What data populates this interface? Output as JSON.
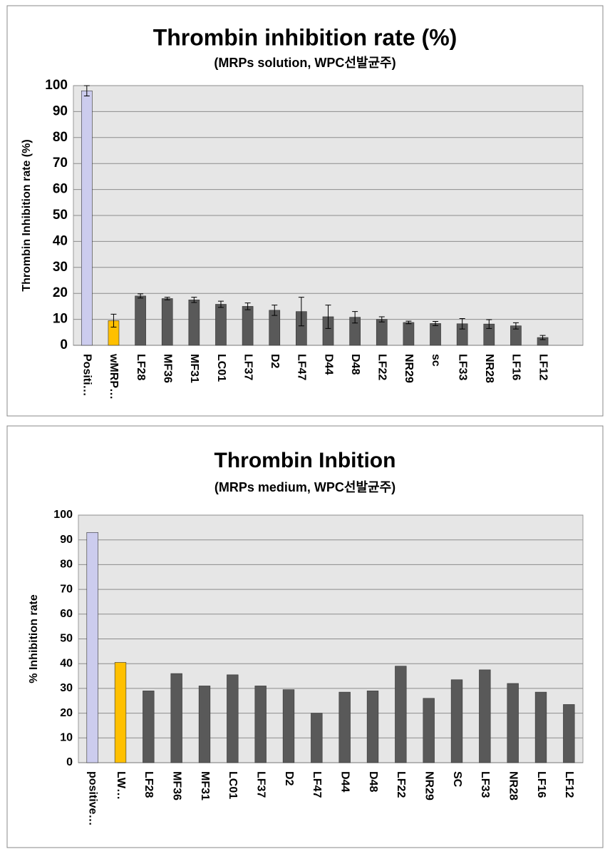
{
  "chart_data": [
    {
      "type": "bar",
      "title": "Thrombin inhibition rate (%)",
      "subtitle": "(MRPs solution, WPC선발균주)",
      "y_label": "Thrombin Inhibition rate (%)",
      "categories": [
        "Positi…",
        "wMRP…",
        "LF28",
        "MF36",
        "MF31",
        "LC01",
        "LF37",
        "D2",
        "LF47",
        "D44",
        "D48",
        "LF22",
        "NR29",
        "sc",
        "LF33",
        "NR28",
        "LF16",
        "LF12",
        null
      ],
      "values": [
        98,
        9.5,
        19,
        18,
        17.5,
        15.8,
        15,
        13.5,
        13,
        11,
        10.8,
        10,
        8.8,
        8.4,
        8.3,
        8.2,
        7.5,
        3,
        null
      ],
      "errors": [
        2,
        2.5,
        0.8,
        0.5,
        1,
        1.2,
        1.3,
        2,
        5.5,
        4.5,
        2.2,
        1,
        0.5,
        0.8,
        2,
        1.7,
        1.2,
        0.8,
        null
      ],
      "colors": [
        "#ccccee",
        "#ffc000",
        "#595959",
        "#595959",
        "#595959",
        "#595959",
        "#595959",
        "#595959",
        "#595959",
        "#595959",
        "#595959",
        "#595959",
        "#595959",
        "#595959",
        "#595959",
        "#595959",
        "#595959",
        "#595959",
        null
      ],
      "ylim": [
        0,
        100
      ],
      "yticks": [
        0,
        10,
        20,
        30,
        40,
        50,
        60,
        70,
        80,
        90,
        100
      ],
      "grid": true
    },
    {
      "type": "bar",
      "title": "Thrombin Inbition",
      "subtitle": "(MRPs medium, WPC선발균주)",
      "y_label": "% Inhibition rate",
      "categories": [
        "positive…",
        "LW…",
        "LF28",
        "MF36",
        "MF31",
        "LC01",
        "LF37",
        "D2",
        "LF47",
        "D44",
        "D48",
        "LF22",
        "NR29",
        "SC",
        "LF33",
        "NR28",
        "LF16",
        "LF12"
      ],
      "values": [
        93,
        40.5,
        29,
        36,
        31,
        35.5,
        31,
        29.5,
        20,
        28.5,
        29,
        39,
        26,
        33.5,
        37.5,
        32,
        28.5,
        23.5
      ],
      "colors": [
        "#ccccee",
        "#ffc000",
        "#595959",
        "#595959",
        "#595959",
        "#595959",
        "#595959",
        "#595959",
        "#595959",
        "#595959",
        "#595959",
        "#595959",
        "#595959",
        "#595959",
        "#595959",
        "#595959",
        "#595959",
        "#595959"
      ],
      "ylim": [
        0,
        100
      ],
      "yticks": [
        0,
        10,
        20,
        30,
        40,
        50,
        60,
        70,
        80,
        90,
        100
      ],
      "grid": true
    }
  ]
}
